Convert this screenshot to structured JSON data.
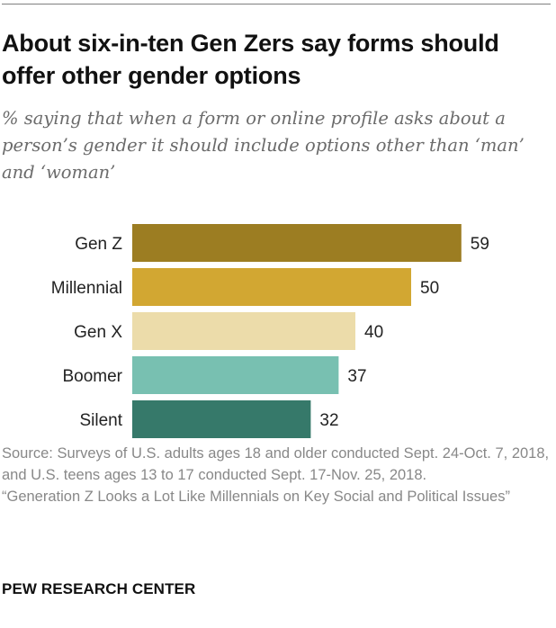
{
  "header": {
    "title": "About six-in-ten Gen Zers say forms should offer other gender options",
    "subtitle": "% saying that when a form or online profile asks about a person’s gender it should include options other than ‘man’ and ‘woman’"
  },
  "chart_data": {
    "type": "bar",
    "orientation": "horizontal",
    "categories": [
      "Gen Z",
      "Millennial",
      "Gen X",
      "Boomer",
      "Silent"
    ],
    "values": [
      59,
      50,
      40,
      37,
      32
    ],
    "colors": [
      "#9c7d22",
      "#d2a732",
      "#ecdcaa",
      "#78c0b1",
      "#36796a"
    ],
    "title": "About six-in-ten Gen Zers say forms should offer other gender options",
    "xlabel": "",
    "ylabel": "",
    "grid": false,
    "legend": "none"
  },
  "footer": {
    "source": "Source: Surveys of U.S. adults ages 18 and older conducted Sept. 24-Oct. 7, 2018, and U.S. teens ages 13 to 17 conducted Sept. 17-Nov. 25, 2018.",
    "report": "“Generation Z Looks a Lot Like Millennials on Key Social and Political Issues”",
    "logo": "PEW RESEARCH CENTER"
  }
}
